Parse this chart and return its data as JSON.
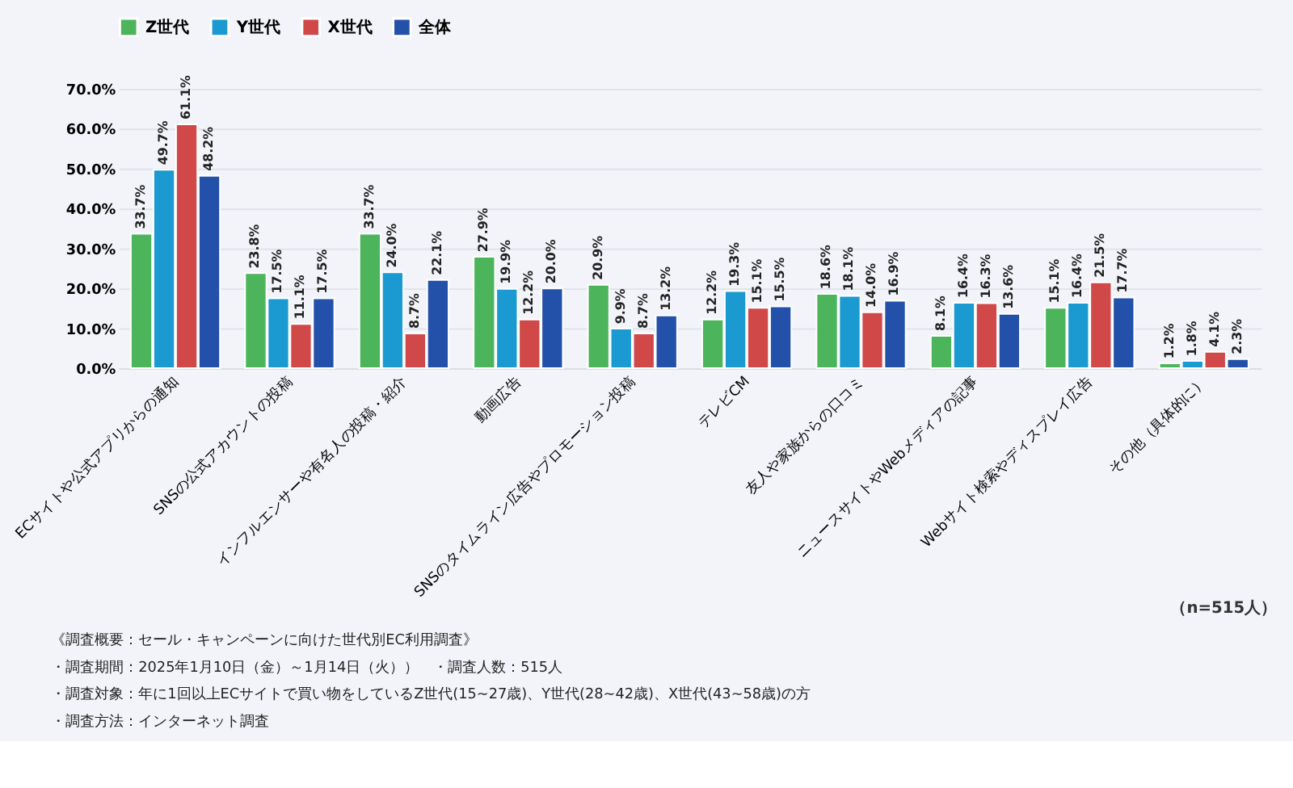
{
  "chart_data": {
    "type": "bar",
    "categories": [
      "ECサイトや公式アプリからの通知",
      "SNSの公式アカウントの投稿",
      "インフルエンサーや有名人の投稿・紹介",
      "動画広告",
      "SNSのタイムライン広告やプロモーション投稿",
      "テレビCM",
      "友人や家族からの口コミ",
      "ニュースサイトやWebメディアの記事",
      "Webサイト検索やディスプレイ広告",
      "その他（具体的に）"
    ],
    "series": [
      {
        "name": "Z世代",
        "color": "#4cb55c",
        "values": [
          33.7,
          23.8,
          33.7,
          27.9,
          20.9,
          12.2,
          18.6,
          8.1,
          15.1,
          1.2
        ],
        "value_labels": [
          "33.7%",
          "23.8%",
          "33.7%",
          "27.9%",
          "20.9%",
          "12.2%",
          "18.6%",
          "8.1%",
          "15.1%",
          "1.2%"
        ]
      },
      {
        "name": "Y世代",
        "color": "#1a9ad0",
        "values": [
          49.7,
          17.5,
          24.0,
          19.9,
          9.9,
          19.3,
          18.1,
          16.4,
          16.4,
          1.8
        ],
        "value_labels": [
          "49.7%",
          "17.5%",
          "24.0%",
          "19.9%",
          "9.9%",
          "19.3%",
          "18.1%",
          "16.4%",
          "16.4%",
          "1.8%"
        ]
      },
      {
        "name": "X世代",
        "color": "#d04848",
        "values": [
          61.1,
          11.1,
          8.7,
          12.2,
          8.7,
          15.1,
          14.0,
          16.3,
          21.5,
          4.1
        ],
        "value_labels": [
          "61.1%",
          "11.1%",
          "8.7%",
          "12.2%",
          "8.7%",
          "15.1%",
          "14.0%",
          "16.3%",
          "21.5%",
          "4.1%"
        ]
      },
      {
        "name": "全体",
        "color": "#2350a8",
        "values": [
          48.2,
          17.5,
          22.1,
          20.0,
          13.2,
          15.5,
          16.9,
          13.6,
          17.7,
          2.3
        ],
        "value_labels": [
          "48.2%",
          "17.5%",
          "22.1%",
          "20.0%",
          "13.2%",
          "15.5%",
          "16.9%",
          "13.6%",
          "17.7%",
          "2.3%"
        ]
      }
    ],
    "ylim": [
      0,
      70
    ],
    "yticks": [
      {
        "value": 0,
        "label": "0.0%"
      },
      {
        "value": 10,
        "label": "10.0%"
      },
      {
        "value": 20,
        "label": "20.0%"
      },
      {
        "value": 30,
        "label": "30.0%"
      },
      {
        "value": 40,
        "label": "40.0%"
      },
      {
        "value": 50,
        "label": "50.0%"
      },
      {
        "value": 60,
        "label": "60.0%"
      },
      {
        "value": 70,
        "label": "70.0%"
      }
    ],
    "grid": "y",
    "legend": "top",
    "annotations": [
      "（n=515人）",
      "《調査概要：セール・キャンペーンに向けた世代別EC利用調査》",
      "・調査期間：2025年1月10日（金）～1月14日（火））　・調査人数：515人",
      "・調査対象：年に1回以上ECサイトで買い物をしているZ世代(15~27歳)、Y世代(28~42歳)、X世代(43~58歳)の方",
      "・調査方法：インターネット調査"
    ]
  }
}
